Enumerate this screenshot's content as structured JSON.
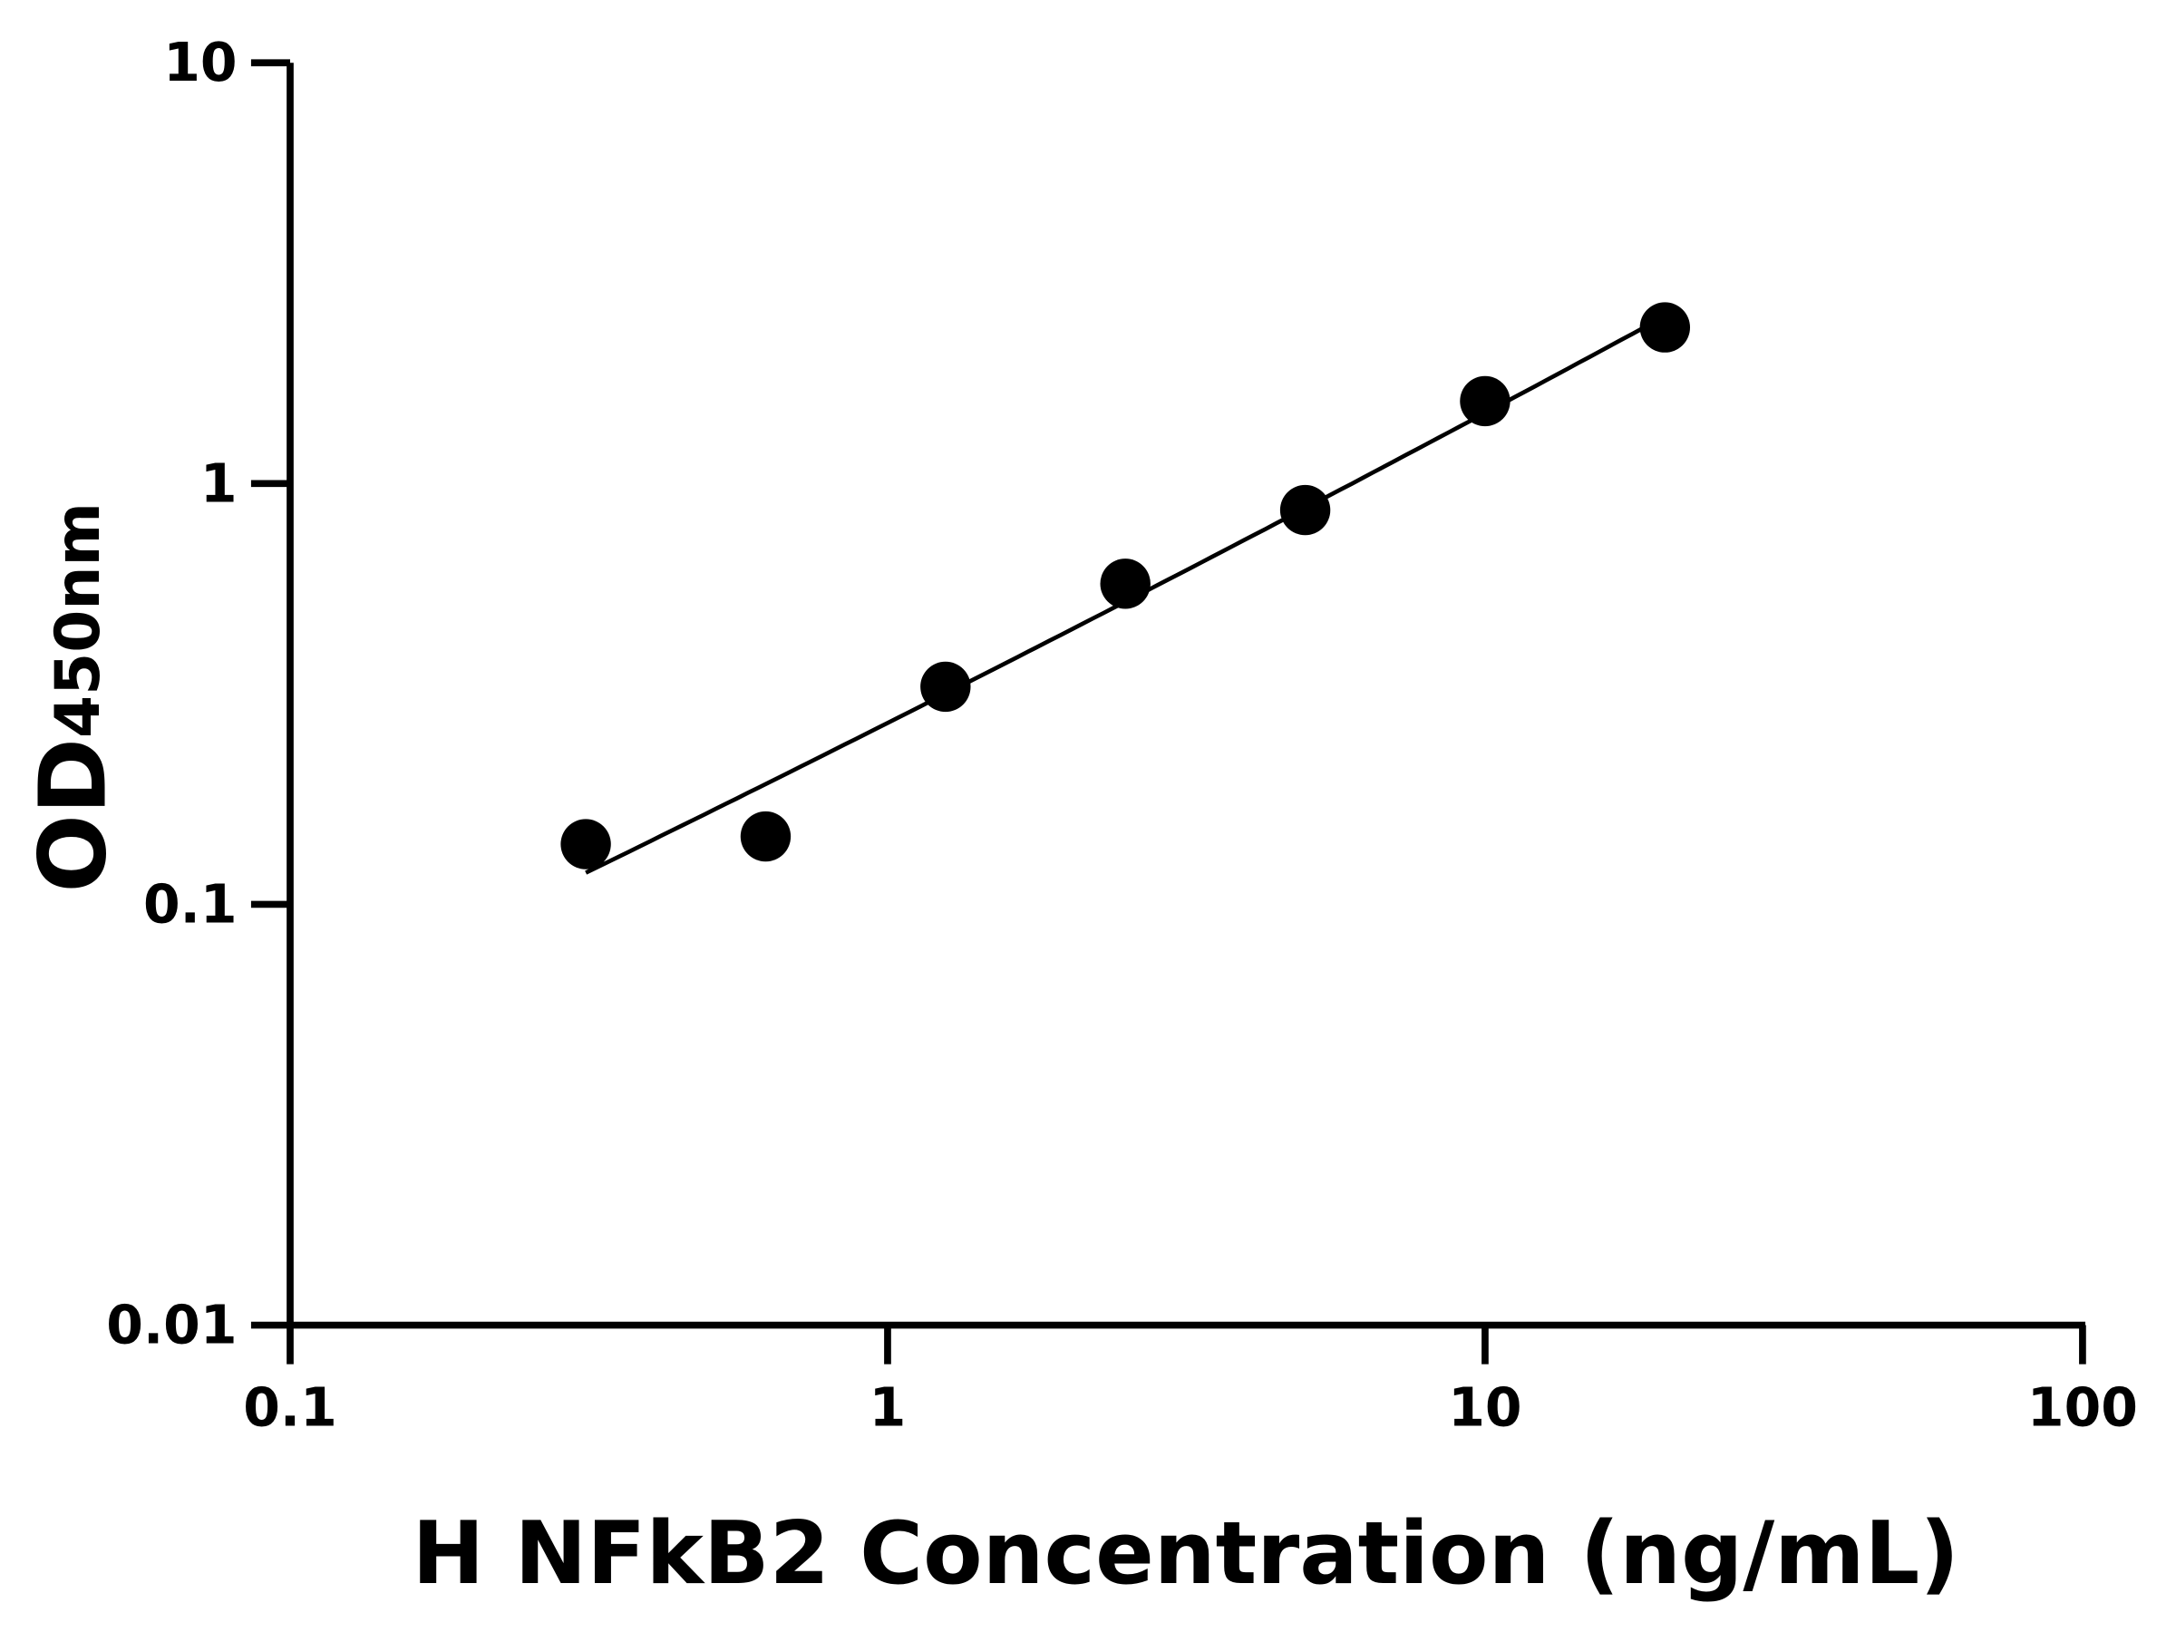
{
  "chart_data": {
    "type": "scatter",
    "title": "",
    "xlabel": "H NFkB2 Concentration (ng/mL)",
    "ylabel_main": "OD",
    "ylabel_sub": "450nm",
    "x_scale": "log",
    "y_scale": "log",
    "xlim": [
      0.1,
      100
    ],
    "ylim": [
      0.01,
      10
    ],
    "x_ticks": [
      "0.1",
      "1",
      "10",
      "100"
    ],
    "y_ticks": [
      "0.01",
      "0.1",
      "1",
      "10"
    ],
    "grid": false,
    "fit_curve": true,
    "series": [
      {
        "x": [
          0.3125,
          0.625,
          1.25,
          2.5,
          5,
          10,
          20
        ],
        "y": [
          0.139,
          0.145,
          0.329,
          0.578,
          0.865,
          1.57,
          2.35
        ],
        "color": "#000000"
      }
    ]
  }
}
